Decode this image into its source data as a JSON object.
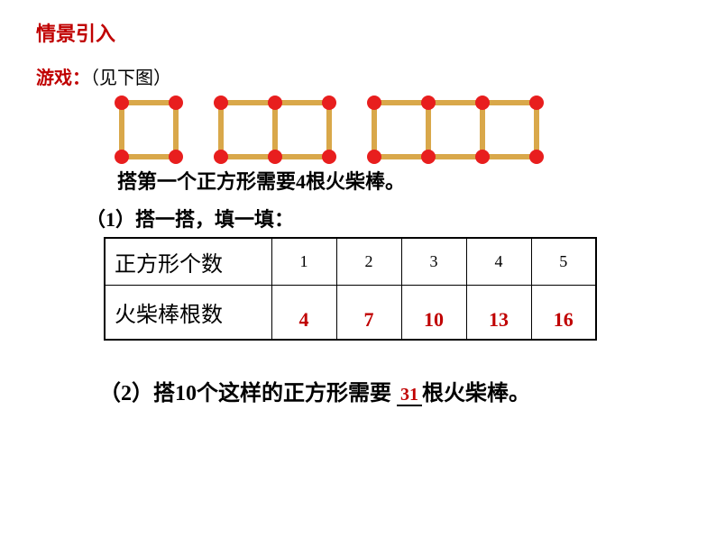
{
  "heading": "情景引入",
  "subheading_red": "游戏：",
  "subheading_paren": "（见下图）",
  "statement": "搭第一个正方形需要4根火柴棒。",
  "question1": "（1）搭一搭，填一填：",
  "table": {
    "row1_header": "正方形个数",
    "row2_header": "火柴棒根数",
    "headers": [
      "1",
      "2",
      "3",
      "4",
      "5"
    ],
    "values": [
      "4",
      "7",
      "10",
      "13",
      "16"
    ]
  },
  "question2_part1": "（2）搭10个这样的正方形需要 ",
  "question2_answer": "31",
  "question2_part2": "根火柴棒。",
  "matchsticks": {
    "square_size": 60,
    "stick_color": "#d9a84a",
    "dot_color": "#e81e1e",
    "shapes": [
      {
        "squares": 1
      },
      {
        "squares": 2
      },
      {
        "squares": 3
      }
    ]
  }
}
